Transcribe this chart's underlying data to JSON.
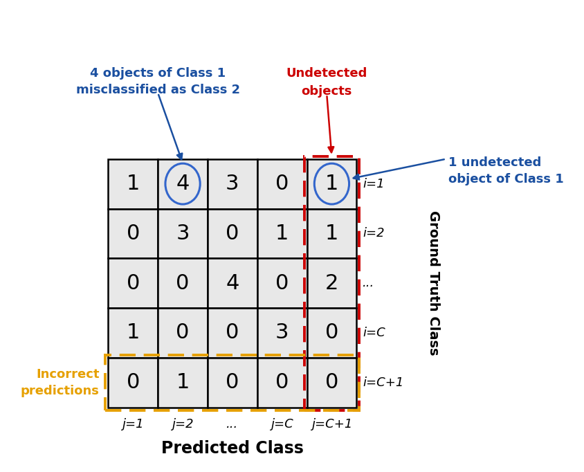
{
  "matrix": [
    [
      1,
      4,
      3,
      0,
      1
    ],
    [
      0,
      3,
      0,
      1,
      1
    ],
    [
      0,
      0,
      4,
      0,
      2
    ],
    [
      1,
      0,
      0,
      3,
      0
    ],
    [
      0,
      1,
      0,
      0,
      0
    ]
  ],
  "row_labels": [
    "i=1",
    "i=2",
    "...",
    "i=C",
    "i=C+1"
  ],
  "col_labels": [
    "j=1",
    "j=2",
    "...",
    "j=C",
    "j=C+1"
  ],
  "xlabel": "Predicted Class",
  "ylabel": "Ground Truth Class",
  "cell_bg_color": "#e8e8e8",
  "cell_border_color": "#000000",
  "annotation_blue_color": "#1a4fa0",
  "annotation_red_color": "#cc0000",
  "annotation_yellow_color": "#e6a000",
  "circle_color": "#3366cc",
  "annotation1_text": "4 objects of Class 1\nmisclassified as Class 2",
  "annotation2_text": "Undetected\nobjects",
  "annotation3_text": "1 undetected\nobject of Class 1",
  "annotation4_text": "Incorrect\npredictions",
  "circle1_cell": [
    0,
    1
  ],
  "circle2_cell": [
    0,
    4
  ],
  "red_dashed_col": 4,
  "yellow_dashed_row": 4,
  "cell_fontsize": 22,
  "label_fontsize": 13,
  "xlabel_fontsize": 17,
  "ylabel_fontsize": 14,
  "ann_fontsize": 13
}
